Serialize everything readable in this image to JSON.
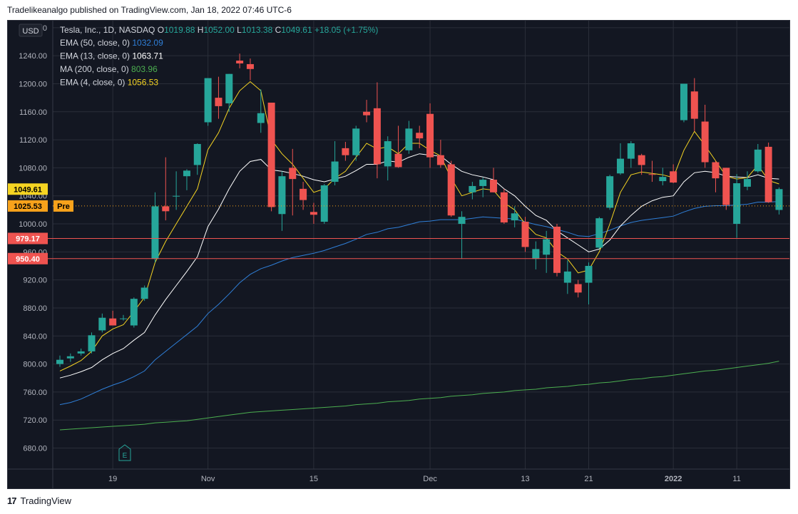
{
  "publisher_line": "Tradelikeanalgo published on TradingView.com, Jan 18, 2022 07:46 UTC-6",
  "footer_brand": "TradingView",
  "footer_logo_glyph": "17",
  "currency": "USD",
  "earnings_marker": "E",
  "legend": {
    "title": "Tesla, Inc., 1D, NASDAQ",
    "o_label": "O",
    "o_val": "1019.88",
    "h_label": "H",
    "h_val": "1052.00",
    "l_label": "L",
    "l_val": "1013.38",
    "c_label": "C",
    "c_val": "1049.61",
    "change": "+18.05 (+1.75%)",
    "studies": [
      {
        "label": "EMA (50, close, 0)",
        "value": "1032.09",
        "color": "#2f7fd8"
      },
      {
        "label": "EMA (13, close, 0)",
        "value": "1063.71",
        "color": "#ffffff"
      },
      {
        "label": "MA (200, close, 0)",
        "value": "803.96",
        "color": "#4caf50"
      },
      {
        "label": "EMA (4, close, 0)",
        "value": "1056.53",
        "color": "#f5d422"
      }
    ]
  },
  "colors": {
    "bull": "#26a69a",
    "bear": "#ef5350",
    "ema50": "#2f7fd8",
    "ema13": "#ffffff",
    "ma200": "#4caf50",
    "ema4": "#f5d422",
    "hline": "#ef5350",
    "pre": "#f7a21b",
    "bg": "#131722",
    "grid": "#2a2e39",
    "text": "#b2b5be"
  },
  "chart_data": {
    "type": "candlestick",
    "title": "Tesla, Inc., 1D, NASDAQ",
    "ylim": [
      650,
      1290
    ],
    "y_ticks": [
      680,
      720,
      760,
      800,
      840,
      880,
      920,
      960,
      1000,
      1040,
      1080,
      1120,
      1160,
      1200,
      1240,
      1280
    ],
    "x_ticks": [
      {
        "label": "19",
        "index": 5
      },
      {
        "label": "Nov",
        "index": 14
      },
      {
        "label": "15",
        "index": 24
      },
      {
        "label": "Dec",
        "index": 35
      },
      {
        "label": "13",
        "index": 44
      },
      {
        "label": "21",
        "index": 50
      },
      {
        "label": "2022",
        "index": 58
      },
      {
        "label": "11",
        "index": 64
      }
    ],
    "candles": [
      {
        "o": 800,
        "h": 812,
        "l": 796,
        "c": 806
      },
      {
        "o": 808,
        "h": 815,
        "l": 803,
        "c": 811
      },
      {
        "o": 815,
        "h": 822,
        "l": 812,
        "c": 818
      },
      {
        "o": 818,
        "h": 845,
        "l": 815,
        "c": 841
      },
      {
        "o": 848,
        "h": 872,
        "l": 845,
        "c": 866
      },
      {
        "o": 865,
        "h": 876,
        "l": 855,
        "c": 855
      },
      {
        "o": 864,
        "h": 870,
        "l": 862,
        "c": 865
      },
      {
        "o": 855,
        "h": 895,
        "l": 852,
        "c": 893
      },
      {
        "o": 893,
        "h": 912,
        "l": 890,
        "c": 909
      },
      {
        "o": 950,
        "h": 1045,
        "l": 945,
        "c": 1025
      },
      {
        "o": 1025,
        "h": 1095,
        "l": 1005,
        "c": 1018
      },
      {
        "o": 1039,
        "h": 1075,
        "l": 1020,
        "c": 1040
      },
      {
        "o": 1068,
        "h": 1078,
        "l": 1048,
        "c": 1076
      },
      {
        "o": 1084,
        "h": 1115,
        "l": 1070,
        "c": 1114
      },
      {
        "o": 1145,
        "h": 1208,
        "l": 1140,
        "c": 1208
      },
      {
        "o": 1180,
        "h": 1210,
        "l": 1150,
        "c": 1168
      },
      {
        "o": 1172,
        "h": 1214,
        "l": 1160,
        "c": 1214
      },
      {
        "o": 1233,
        "h": 1243,
        "l": 1222,
        "c": 1229
      },
      {
        "o": 1228,
        "h": 1236,
        "l": 1205,
        "c": 1221
      },
      {
        "o": 1144,
        "h": 1192,
        "l": 1130,
        "c": 1158
      },
      {
        "o": 1173,
        "h": 1173,
        "l": 1018,
        "c": 1024
      },
      {
        "o": 1014,
        "h": 1075,
        "l": 990,
        "c": 1068
      },
      {
        "o": 1080,
        "h": 1107,
        "l": 1012,
        "c": 1064
      },
      {
        "o": 1050,
        "h": 1060,
        "l": 1020,
        "c": 1034
      },
      {
        "o": 1017,
        "h": 1030,
        "l": 1000,
        "c": 1013
      },
      {
        "o": 1003,
        "h": 1057,
        "l": 1000,
        "c": 1055
      },
      {
        "o": 1060,
        "h": 1118,
        "l": 1055,
        "c": 1089
      },
      {
        "o": 1108,
        "h": 1117,
        "l": 1090,
        "c": 1098
      },
      {
        "o": 1098,
        "h": 1140,
        "l": 1090,
        "c": 1136
      },
      {
        "o": 1160,
        "h": 1177,
        "l": 1145,
        "c": 1155
      },
      {
        "o": 1165,
        "h": 1202,
        "l": 1065,
        "c": 1085
      },
      {
        "o": 1082,
        "h": 1125,
        "l": 1062,
        "c": 1118
      },
      {
        "o": 1100,
        "h": 1140,
        "l": 1080,
        "c": 1081
      },
      {
        "o": 1105,
        "h": 1147,
        "l": 1100,
        "c": 1136
      },
      {
        "o": 1130,
        "h": 1140,
        "l": 1108,
        "c": 1122
      },
      {
        "o": 1157,
        "h": 1172,
        "l": 1080,
        "c": 1095
      },
      {
        "o": 1098,
        "h": 1120,
        "l": 1080,
        "c": 1084
      },
      {
        "o": 1085,
        "h": 1090,
        "l": 1010,
        "c": 1012
      },
      {
        "o": 1000,
        "h": 1018,
        "l": 950,
        "c": 1010
      },
      {
        "o": 1045,
        "h": 1060,
        "l": 1035,
        "c": 1054
      },
      {
        "o": 1054,
        "h": 1066,
        "l": 1038,
        "c": 1063
      },
      {
        "o": 1063,
        "h": 1080,
        "l": 1045,
        "c": 1045
      },
      {
        "o": 1045,
        "h": 1050,
        "l": 1000,
        "c": 1002
      },
      {
        "o": 1005,
        "h": 1025,
        "l": 995,
        "c": 1015
      },
      {
        "o": 1003,
        "h": 1010,
        "l": 960,
        "c": 967
      },
      {
        "o": 950,
        "h": 975,
        "l": 935,
        "c": 964
      },
      {
        "o": 956,
        "h": 990,
        "l": 930,
        "c": 978
      },
      {
        "o": 996,
        "h": 1000,
        "l": 925,
        "c": 930
      },
      {
        "o": 916,
        "h": 948,
        "l": 900,
        "c": 932
      },
      {
        "o": 914,
        "h": 920,
        "l": 895,
        "c": 902
      },
      {
        "o": 916,
        "h": 945,
        "l": 885,
        "c": 940
      },
      {
        "o": 966,
        "h": 1010,
        "l": 964,
        "c": 1008
      },
      {
        "o": 1023,
        "h": 1070,
        "l": 1020,
        "c": 1068
      },
      {
        "o": 1072,
        "h": 1115,
        "l": 1070,
        "c": 1093
      },
      {
        "o": 1093,
        "h": 1118,
        "l": 1080,
        "c": 1115
      },
      {
        "o": 1098,
        "h": 1100,
        "l": 1070,
        "c": 1084
      },
      {
        "o": 1071,
        "h": 1090,
        "l": 1060,
        "c": 1070
      },
      {
        "o": 1061,
        "h": 1080,
        "l": 1055,
        "c": 1067
      },
      {
        "o": 1075,
        "h": 1085,
        "l": 1058,
        "c": 1059
      },
      {
        "o": 1148,
        "h": 1200,
        "l": 1145,
        "c": 1200
      },
      {
        "o": 1189,
        "h": 1208,
        "l": 1132,
        "c": 1150
      },
      {
        "o": 1146,
        "h": 1170,
        "l": 1080,
        "c": 1088
      },
      {
        "o": 1088,
        "h": 1090,
        "l": 1045,
        "c": 1065
      },
      {
        "o": 1080,
        "h": 1080,
        "l": 1020,
        "c": 1027
      },
      {
        "o": 1000,
        "h": 1071,
        "l": 980,
        "c": 1058
      },
      {
        "o": 1053,
        "h": 1075,
        "l": 1048,
        "c": 1064
      },
      {
        "o": 1075,
        "h": 1114,
        "l": 1073,
        "c": 1106
      },
      {
        "o": 1110,
        "h": 1116,
        "l": 1030,
        "c": 1031
      },
      {
        "o": 1019.88,
        "h": 1052.0,
        "l": 1013.38,
        "c": 1049.61
      }
    ],
    "ema4": [
      790,
      797,
      805,
      818,
      840,
      850,
      856,
      875,
      895,
      945,
      975,
      1000,
      1025,
      1050,
      1106,
      1130,
      1165,
      1190,
      1203,
      1190,
      1120,
      1100,
      1085,
      1065,
      1045,
      1050,
      1065,
      1075,
      1095,
      1115,
      1107,
      1110,
      1100,
      1115,
      1115,
      1105,
      1097,
      1065,
      1040,
      1045,
      1050,
      1048,
      1030,
      1020,
      1000,
      985,
      980,
      960,
      950,
      930,
      934,
      960,
      1000,
      1045,
      1070,
      1074,
      1072,
      1070,
      1066,
      1105,
      1132,
      1112,
      1090,
      1068,
      1064,
      1066,
      1084,
      1062,
      1057
    ],
    "ema13": [
      780,
      784,
      789,
      795,
      806,
      815,
      822,
      834,
      845,
      870,
      892,
      912,
      932,
      953,
      996,
      1021,
      1050,
      1075,
      1089,
      1092,
      1077,
      1075,
      1072,
      1068,
      1063,
      1060,
      1064,
      1068,
      1076,
      1085,
      1085,
      1090,
      1088,
      1095,
      1100,
      1098,
      1097,
      1085,
      1075,
      1070,
      1067,
      1063,
      1050,
      1040,
      1025,
      1012,
      1005,
      990,
      980,
      970,
      960,
      964,
      977,
      997,
      1012,
      1025,
      1033,
      1038,
      1040,
      1060,
      1073,
      1075,
      1073,
      1068,
      1067,
      1066,
      1070,
      1065,
      1064
    ],
    "ema50": [
      742,
      745,
      750,
      757,
      764,
      770,
      775,
      782,
      790,
      806,
      818,
      830,
      842,
      854,
      872,
      885,
      900,
      916,
      928,
      936,
      941,
      947,
      952,
      955,
      958,
      962,
      967,
      972,
      978,
      985,
      988,
      993,
      995,
      999,
      1003,
      1004,
      1006,
      1006,
      1006,
      1008,
      1010,
      1009,
      1008,
      1007,
      1003,
      999,
      996,
      992,
      988,
      983,
      982,
      986,
      991,
      997,
      1002,
      1005,
      1007,
      1009,
      1011,
      1017,
      1022,
      1025,
      1026,
      1026,
      1027,
      1028,
      1031,
      1031,
      1032
    ],
    "ma200": [
      706,
      707,
      708,
      709,
      710,
      711,
      712,
      713,
      714,
      716,
      717,
      718,
      719,
      721,
      723,
      725,
      727,
      729,
      731,
      732,
      733,
      734,
      735,
      736,
      737,
      738,
      739,
      740,
      742,
      743,
      744,
      746,
      747,
      748,
      750,
      751,
      752,
      754,
      755,
      756,
      758,
      759,
      760,
      762,
      763,
      764,
      766,
      767,
      768,
      770,
      771,
      773,
      774,
      776,
      778,
      779,
      781,
      782,
      784,
      786,
      788,
      790,
      791,
      793,
      795,
      797,
      799,
      801,
      804
    ],
    "hlines": [
      {
        "value": 979.17,
        "label": "979.17"
      },
      {
        "value": 950.4,
        "label": "950.40"
      }
    ],
    "price_tags": [
      {
        "value": 1049.61,
        "label": "1049.61",
        "kind": "last"
      },
      {
        "value": 1025.53,
        "label": "1025.53",
        "kind": "pre",
        "tag": "Pre"
      }
    ]
  }
}
